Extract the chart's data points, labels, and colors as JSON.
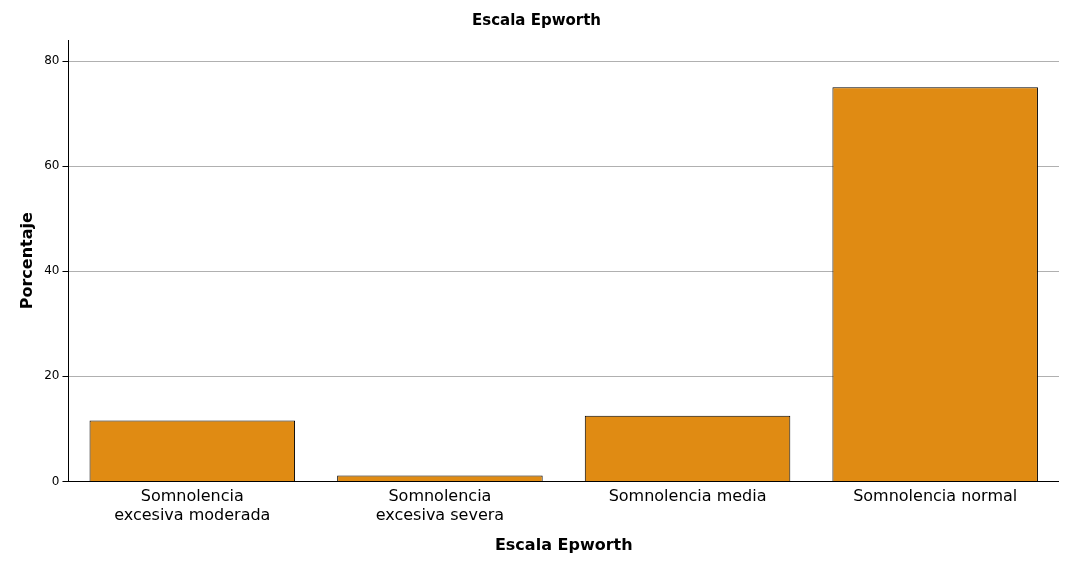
{
  "chart_data": {
    "type": "bar",
    "title": "Escala Epworth",
    "xlabel": "Escala Epworth",
    "ylabel": "Porcentaje",
    "categories": [
      "Somnolencia excesiva moderada",
      "Somnolencia excesiva severa",
      "Somnolencia media",
      "Somnolencia normal"
    ],
    "values": [
      11.6,
      1.1,
      12.5,
      75.0
    ],
    "color": "#e08b13",
    "ylim": [
      0,
      84
    ],
    "yticks": [
      0,
      20,
      40,
      60,
      80
    ],
    "grid": "y",
    "legend": false
  }
}
